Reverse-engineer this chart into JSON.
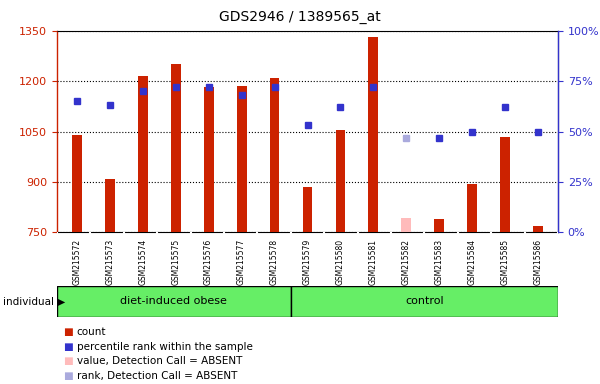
{
  "title": "GDS2946 / 1389565_at",
  "samples": [
    "GSM215572",
    "GSM215573",
    "GSM215574",
    "GSM215575",
    "GSM215576",
    "GSM215577",
    "GSM215578",
    "GSM215579",
    "GSM215580",
    "GSM215581",
    "GSM215582",
    "GSM215583",
    "GSM215584",
    "GSM215585",
    "GSM215586"
  ],
  "counts": [
    1040,
    910,
    1215,
    1250,
    1183,
    1185,
    1210,
    885,
    1055,
    1330,
    792,
    790,
    895,
    1035,
    770
  ],
  "ranks_pct": [
    65,
    63,
    70,
    72,
    72,
    68,
    72,
    53,
    62,
    72,
    47,
    47,
    50,
    62,
    50
  ],
  "absent_flags": [
    false,
    false,
    false,
    false,
    false,
    false,
    false,
    false,
    false,
    false,
    true,
    false,
    false,
    false,
    false
  ],
  "absent_rank_pct": 47,
  "absent_idx": 10,
  "group1_label": "diet-induced obese",
  "group2_label": "control",
  "group1_count": 7,
  "group2_count": 8,
  "ylim_left": [
    750,
    1350
  ],
  "ylim_right": [
    0,
    100
  ],
  "yticks_left": [
    750,
    900,
    1050,
    1200,
    1350
  ],
  "yticks_right": [
    0,
    25,
    50,
    75,
    100
  ],
  "bar_color": "#cc2200",
  "dot_color": "#3333cc",
  "absent_bar_color": "#ffbbbb",
  "absent_dot_color": "#aaaadd",
  "group_bg_color": "#66ee66",
  "tick_label_bg": "#cccccc",
  "individual_label": "individual",
  "bar_width": 0.3,
  "legend_items": [
    {
      "color": "#cc2200",
      "label": "count"
    },
    {
      "color": "#3333cc",
      "label": "percentile rank within the sample"
    },
    {
      "color": "#ffbbbb",
      "label": "value, Detection Call = ABSENT"
    },
    {
      "color": "#aaaadd",
      "label": "rank, Detection Call = ABSENT"
    }
  ]
}
